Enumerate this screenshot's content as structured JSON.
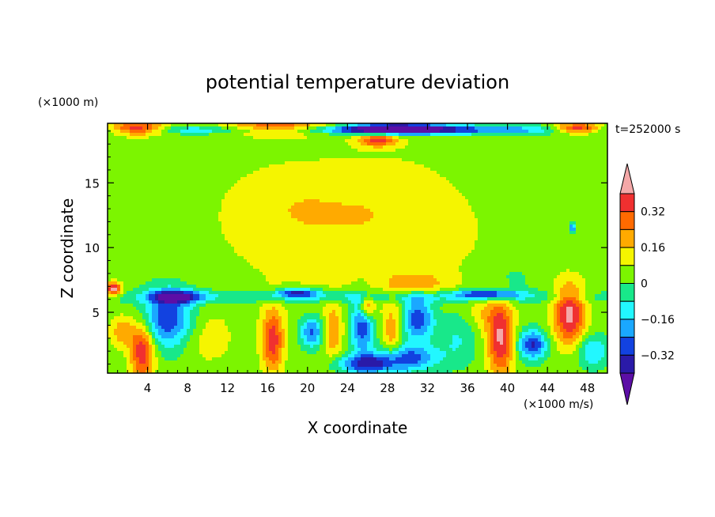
{
  "chart_data": {
    "type": "heatmap",
    "title": "potential temperature deviation",
    "time_label": "t=252000 s",
    "xlabel": "X coordinate",
    "ylabel": "Z coordinate",
    "x_unit": "(×1000 m/s)",
    "y_unit": "(×1000 m)",
    "xlim": [
      0,
      50
    ],
    "ylim": [
      0.3,
      19.6
    ],
    "x_ticks": [
      4,
      8,
      12,
      16,
      20,
      24,
      28,
      32,
      36,
      40,
      44,
      48
    ],
    "y_ticks": [
      5,
      10,
      15
    ],
    "colorbar": {
      "labels": [
        "0.32",
        "0.16",
        "0",
        "−0.16",
        "−0.32"
      ],
      "label_values": [
        0.32,
        0.16,
        0,
        -0.16,
        -0.32
      ],
      "levels": [
        -0.4,
        -0.32,
        -0.24,
        -0.16,
        -0.08,
        0,
        0.08,
        0.16,
        0.24,
        0.32,
        0.4
      ],
      "colors": [
        "#5c0ea6",
        "#2a1aa8",
        "#1242e0",
        "#1aa8ff",
        "#22f7ff",
        "#18e88a",
        "#7cf500",
        "#f5f500",
        "#ffaa00",
        "#ff6a00",
        "#f03030",
        "#f4a8a8"
      ],
      "extend": "both"
    },
    "field": {
      "background": 0.03,
      "blobs": [
        {
          "x": 25,
          "z": 11,
          "rx": 14,
          "rz": 5.5,
          "v": 0.1
        },
        {
          "x": 18,
          "z": 13.5,
          "rx": 6,
          "rz": 3,
          "v": 0.06
        },
        {
          "x": 28,
          "z": 14,
          "rx": 6,
          "rz": 3.5,
          "v": 0.04
        },
        {
          "x": 31,
          "z": 7.2,
          "rx": 3,
          "rz": 0.9,
          "v": 0.15
        },
        {
          "x": 25,
          "z": 19.1,
          "rx": 25,
          "rz": 0.35,
          "v": -0.35
        },
        {
          "x": 29,
          "z": 19.2,
          "rx": 5,
          "rz": 0.45,
          "v": -0.4
        },
        {
          "x": 3,
          "z": 19.2,
          "rx": 3,
          "rz": 0.5,
          "v": 0.45
        },
        {
          "x": 17,
          "z": 19.2,
          "rx": 6,
          "rz": 0.5,
          "v": 0.45
        },
        {
          "x": 47,
          "z": 19.2,
          "rx": 2.5,
          "rz": 0.4,
          "v": 0.45
        },
        {
          "x": 27,
          "z": 18.3,
          "rx": 2,
          "rz": 0.5,
          "v": 0.32
        },
        {
          "x": 25,
          "z": 6.2,
          "rx": 25,
          "rz": 0.5,
          "v": -0.15
        },
        {
          "x": 7,
          "z": 6.2,
          "rx": 2.5,
          "rz": 0.5,
          "v": -0.35
        },
        {
          "x": 19,
          "z": 6.5,
          "rx": 2,
          "rz": 0.35,
          "v": -0.35
        },
        {
          "x": 38,
          "z": 6.4,
          "rx": 3,
          "rz": 0.35,
          "v": -0.35
        },
        {
          "x": 6,
          "z": 4.5,
          "rx": 2.5,
          "rz": 2.2,
          "v": -0.35
        },
        {
          "x": 3.5,
          "z": 2,
          "rx": 1.2,
          "rz": 2.2,
          "v": 0.38
        },
        {
          "x": 1.5,
          "z": 3.5,
          "rx": 1.2,
          "rz": 1.2,
          "v": 0.2
        },
        {
          "x": 10,
          "z": 3,
          "rx": 2.5,
          "rz": 2,
          "v": 0.1
        },
        {
          "x": 16.5,
          "z": 2.8,
          "rx": 1.1,
          "rz": 2.4,
          "v": 0.34
        },
        {
          "x": 20.5,
          "z": 3.5,
          "rx": 1.2,
          "rz": 1.2,
          "v": -0.3
        },
        {
          "x": 22.5,
          "z": 3.5,
          "rx": 1,
          "rz": 2,
          "v": 0.2
        },
        {
          "x": 25.5,
          "z": 4,
          "rx": 1.2,
          "rz": 2.2,
          "v": -0.35
        },
        {
          "x": 26,
          "z": 5.5,
          "rx": 0.8,
          "rz": 1,
          "v": 0.3
        },
        {
          "x": 28.5,
          "z": 3.5,
          "rx": 1,
          "rz": 2.5,
          "v": 0.18
        },
        {
          "x": 31,
          "z": 4.5,
          "rx": 1.6,
          "rz": 1.6,
          "v": -0.36
        },
        {
          "x": 30,
          "z": 1.5,
          "rx": 3,
          "rz": 1,
          "v": -0.3
        },
        {
          "x": 26,
          "z": 1,
          "rx": 3,
          "rz": 0.7,
          "v": -0.35
        },
        {
          "x": 35,
          "z": 3,
          "rx": 2,
          "rz": 2,
          "v": -0.12
        },
        {
          "x": 39.3,
          "z": 3,
          "rx": 1.3,
          "rz": 3,
          "v": 0.38
        },
        {
          "x": 42.5,
          "z": 2.5,
          "rx": 1.4,
          "rz": 1.1,
          "v": -0.36
        },
        {
          "x": 46.2,
          "z": 4.8,
          "rx": 1.6,
          "rz": 2.3,
          "v": 0.4
        },
        {
          "x": 48.5,
          "z": 2,
          "rx": 1.5,
          "rz": 1.2,
          "v": -0.2
        },
        {
          "x": 37.5,
          "z": 5,
          "rx": 1.5,
          "rz": 1.5,
          "v": 0.1
        },
        {
          "x": 0.6,
          "z": 6.8,
          "rx": 0.8,
          "rz": 0.5,
          "v": 0.42
        },
        {
          "x": 46.5,
          "z": 11.5,
          "rx": 0.3,
          "rz": 0.3,
          "v": -0.35
        },
        {
          "x": 40,
          "z": 7.5,
          "rx": 2.5,
          "rz": 1.2,
          "v": -0.08
        }
      ]
    }
  }
}
